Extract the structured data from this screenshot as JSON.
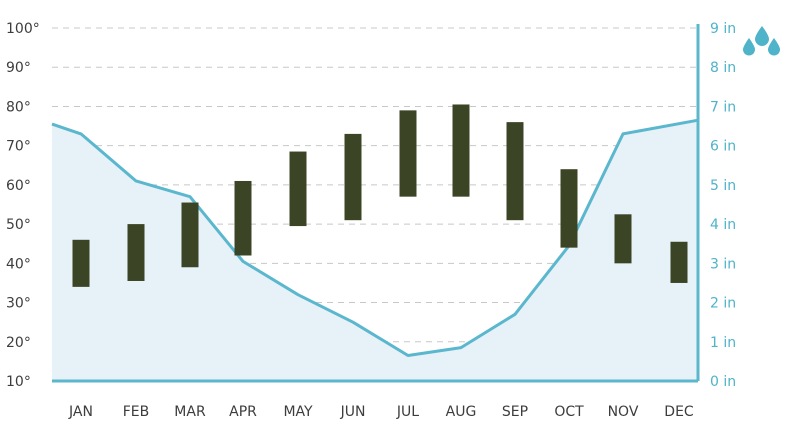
{
  "chart_data": {
    "type": "bar",
    "categories": [
      "JAN",
      "FEB",
      "MAR",
      "APR",
      "MAY",
      "JUN",
      "JUL",
      "AUG",
      "SEP",
      "OCT",
      "NOV",
      "DEC"
    ],
    "temperature_range": {
      "low": [
        34,
        35.5,
        39,
        42,
        49.5,
        51,
        57,
        57,
        51,
        44,
        40,
        35
      ],
      "high": [
        46,
        50,
        55.5,
        61,
        68.5,
        73,
        79,
        80.5,
        76,
        64,
        52.5,
        45.5
      ]
    },
    "precipitation": {
      "x": [
        "DEC_start",
        "JAN",
        "FEB",
        "MAR",
        "APR",
        "MAY",
        "JUN",
        "JUL",
        "AUG",
        "SEP",
        "OCT",
        "NOV",
        "DEC"
      ],
      "values": [
        6.55,
        6.3,
        5.1,
        4.7,
        3.05,
        2.2,
        1.5,
        0.65,
        0.85,
        1.7,
        3.45,
        6.3,
        6.65
      ]
    },
    "left_axis": {
      "ticks": [
        "10°",
        "20°",
        "30°",
        "40°",
        "50°",
        "60°",
        "70°",
        "80°",
        "90°",
        "100°"
      ],
      "range": [
        10,
        100
      ]
    },
    "right_axis": {
      "ticks": [
        "0 in",
        "1 in",
        "2 in",
        "3 in",
        "4 in",
        "5 in",
        "6 in",
        "7 in",
        "8 in",
        "9 in"
      ],
      "range": [
        0,
        9
      ]
    },
    "grid": true,
    "colors": {
      "bars": "#3b4424",
      "line": "#5ab7cd",
      "area": "#e7f1f8",
      "axis_right_text": "#4fb3c9",
      "axis_left_text": "#3d3d3d",
      "grid": "#c8c8c8"
    },
    "icon": "raindrops-icon"
  }
}
